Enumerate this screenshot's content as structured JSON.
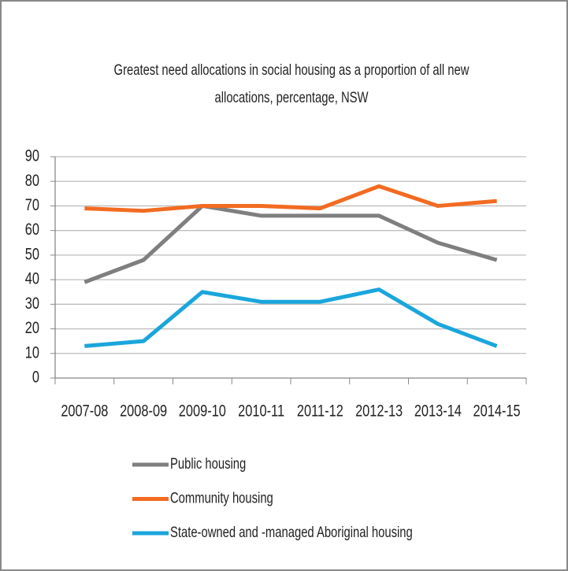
{
  "chart_data": {
    "type": "line",
    "title_lines": [
      "Greatest need allocations in social housing as a proportion of all new",
      "allocations, percentage, NSW"
    ],
    "categories": [
      "2007-08",
      "2008-09",
      "2009-10",
      "2010-11",
      "2011-12",
      "2012-13",
      "2013-14",
      "2014-15"
    ],
    "series": [
      {
        "name": "Public housing",
        "color": "#7f7f7f",
        "values": [
          39,
          48,
          70,
          66,
          66,
          66,
          55,
          48
        ]
      },
      {
        "name": "Community housing",
        "color": "#f26b21",
        "values": [
          69,
          68,
          70,
          70,
          69,
          78,
          70,
          72
        ]
      },
      {
        "name": "State-owned and -managed Aboriginal housing",
        "color": "#1aa6dc",
        "values": [
          13,
          15,
          35,
          31,
          31,
          36,
          22,
          13
        ]
      }
    ],
    "ylim": [
      0,
      90
    ],
    "yticks": [
      0,
      10,
      20,
      30,
      40,
      50,
      60,
      70,
      80,
      90
    ],
    "grid": true,
    "legend": "bottom"
  }
}
